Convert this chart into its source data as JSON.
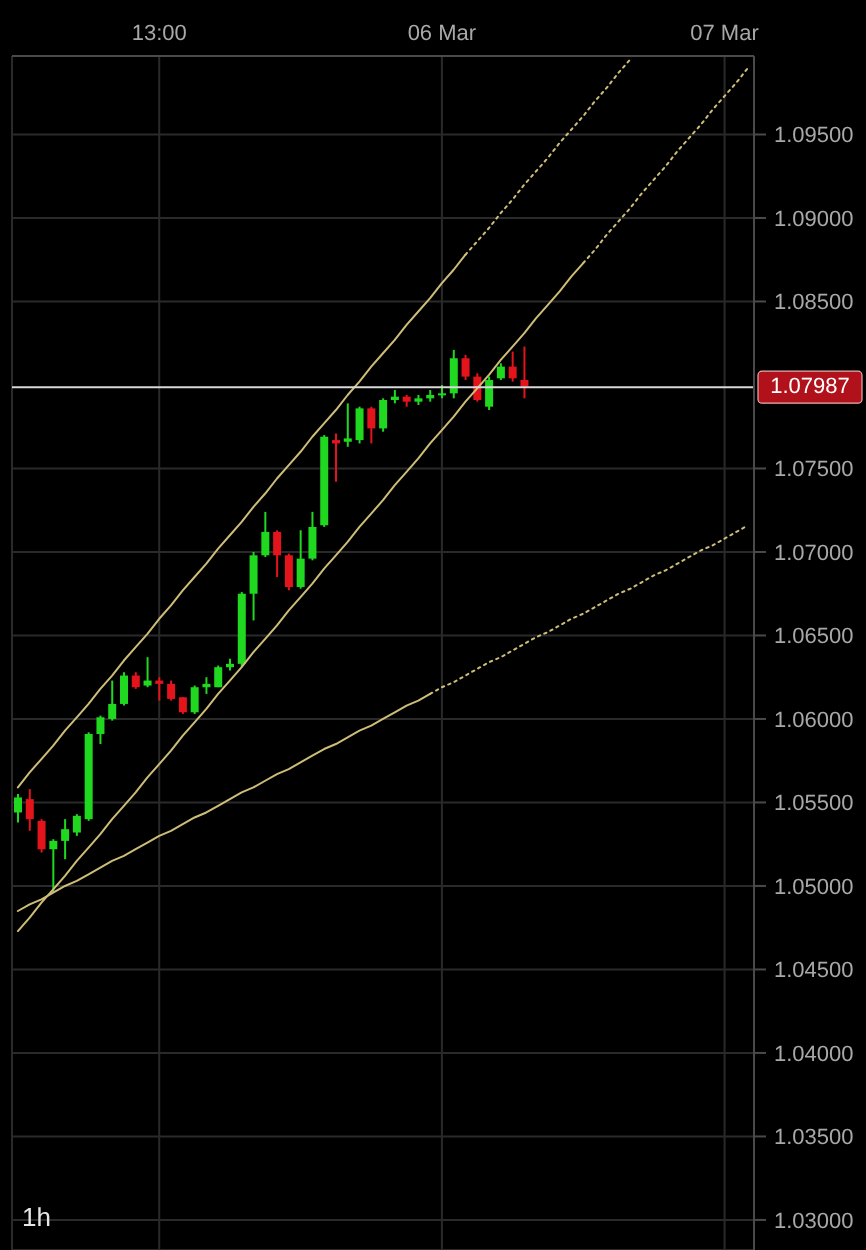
{
  "chart_data": {
    "type": "candlestick",
    "categories": [
      null,
      null,
      null,
      null,
      null,
      null,
      null,
      null,
      null,
      null,
      null,
      null,
      "13:00",
      null,
      null,
      null,
      null,
      null,
      null,
      null,
      null,
      null,
      null,
      null,
      null,
      null,
      null,
      null,
      null,
      null,
      null,
      null,
      null,
      null,
      null,
      null,
      "06 Mar",
      null,
      null,
      null,
      null,
      null,
      null,
      null,
      null,
      null,
      null,
      null,
      null,
      null,
      null,
      null,
      null,
      null,
      null,
      null,
      null,
      null,
      null,
      null,
      "07 Mar",
      null,
      null
    ],
    "ohlc": [
      [
        1.0544,
        1.0555,
        1.0538,
        1.0553
      ],
      [
        1.0552,
        1.0558,
        1.0533,
        1.054
      ],
      [
        1.0539,
        1.054,
        1.052,
        1.0522
      ],
      [
        1.0522,
        1.0528,
        1.0496,
        1.0527
      ],
      [
        1.0527,
        1.054,
        1.0516,
        1.0534
      ],
      [
        1.0532,
        1.0543,
        1.053,
        1.0542
      ],
      [
        1.054,
        1.0592,
        1.0539,
        1.0591
      ],
      [
        1.0591,
        1.0602,
        1.0585,
        1.0601
      ],
      [
        1.06,
        1.0623,
        1.0599,
        1.0609
      ],
      [
        1.0609,
        1.0628,
        1.0608,
        1.0626
      ],
      [
        1.0626,
        1.0628,
        1.0618,
        1.0619
      ],
      [
        1.062,
        1.0637,
        1.0619,
        1.0623
      ],
      [
        1.0623,
        1.0625,
        1.0611,
        1.0621
      ],
      [
        1.0621,
        1.0623,
        1.0611,
        1.0612
      ],
      [
        1.0613,
        1.0613,
        1.0603,
        1.0604
      ],
      [
        1.0604,
        1.062,
        1.0603,
        1.0619
      ],
      [
        1.0619,
        1.0625,
        1.0615,
        1.0621
      ],
      [
        1.0619,
        1.0632,
        1.0619,
        1.0631
      ],
      [
        1.0631,
        1.0636,
        1.0629,
        1.0633
      ],
      [
        1.0633,
        1.0676,
        1.0631,
        1.0675
      ],
      [
        1.0675,
        1.07,
        1.0659,
        1.0698
      ],
      [
        1.0698,
        1.0724,
        1.0697,
        1.0712
      ],
      [
        1.0712,
        1.0713,
        1.0685,
        1.0698
      ],
      [
        1.0698,
        1.0699,
        1.0677,
        1.0679
      ],
      [
        1.0679,
        1.0713,
        1.0678,
        1.0696
      ],
      [
        1.0696,
        1.0724,
        1.0695,
        1.0715
      ],
      [
        1.0716,
        1.077,
        1.0715,
        1.0769
      ],
      [
        1.0767,
        1.0771,
        1.0742,
        1.0765
      ],
      [
        1.0766,
        1.0789,
        1.0763,
        1.0768
      ],
      [
        1.0767,
        1.0787,
        1.0765,
        1.0786
      ],
      [
        1.0786,
        1.0787,
        1.0765,
        1.0774
      ],
      [
        1.0774,
        1.0792,
        1.0772,
        1.0791
      ],
      [
        1.0791,
        1.0797,
        1.0789,
        1.0793
      ],
      [
        1.0793,
        1.0794,
        1.0787,
        1.079
      ],
      [
        1.079,
        1.0794,
        1.0788,
        1.0792
      ],
      [
        1.0792,
        1.0797,
        1.079,
        1.0794
      ],
      [
        1.0794,
        1.08,
        1.0792,
        1.0795
      ],
      [
        1.0795,
        1.0821,
        1.0792,
        1.0816
      ],
      [
        1.0816,
        1.0818,
        1.0803,
        1.0805
      ],
      [
        1.0805,
        1.0807,
        1.079,
        1.0791
      ],
      [
        1.0787,
        1.0805,
        1.0785,
        1.0803
      ],
      [
        1.0804,
        1.0813,
        1.0803,
        1.0811
      ],
      [
        1.0811,
        1.082,
        1.0802,
        1.0804
      ],
      [
        1.0803,
        1.0823,
        1.0792,
        1.0799
      ],
      null,
      null,
      null,
      null,
      null,
      null,
      null,
      null,
      null,
      null,
      null,
      null,
      null,
      null,
      null,
      null,
      null,
      null,
      null
    ],
    "colors": [
      "#1fd81f",
      "#e3141b",
      "#e3141b",
      "#1fd81f",
      "#1fd81f",
      "#1fd81f",
      "#1fd81f",
      "#1fd81f",
      "#1fd81f",
      "#1fd81f",
      "#e3141b",
      "#1fd81f",
      "#e3141b",
      "#e3141b",
      "#e3141b",
      "#1fd81f",
      "#1fd81f",
      "#1fd81f",
      "#1fd81f",
      "#1fd81f",
      "#1fd81f",
      "#1fd81f",
      "#e3141b",
      "#e3141b",
      "#1fd81f",
      "#1fd81f",
      "#1fd81f",
      "#e3141b",
      "#1fd81f",
      "#1fd81f",
      "#e3141b",
      "#1fd81f",
      "#1fd81f",
      "#e3141b",
      "#1fd81f",
      "#1fd81f",
      "#1fd81f",
      "#1fd81f",
      "#e3141b",
      "#e3141b",
      "#1fd81f",
      "#1fd81f",
      "#e3141b",
      "#e3141b",
      null,
      null,
      null,
      null,
      null,
      null,
      null,
      null,
      null,
      null,
      null,
      null,
      null,
      null,
      null,
      null,
      null,
      null,
      null
    ],
    "series": [
      {
        "type": "line",
        "color": "#cdbd78",
        "line_style": "solid",
        "values": [
          1.0559,
          1.0568,
          1.0576,
          1.0584,
          1.0593,
          1.0601,
          1.0609,
          1.0618,
          1.0626,
          1.0635,
          1.0643,
          1.0651,
          1.066,
          1.0668,
          1.0677,
          1.0685,
          1.0693,
          1.0702,
          1.071,
          1.0718,
          1.0727,
          1.0735,
          1.0744,
          1.0752,
          1.076,
          1.0769,
          1.0777,
          1.0785,
          1.0794,
          1.0802,
          1.0811,
          1.0819,
          1.0827,
          1.0836,
          1.0844,
          1.0852,
          1.0861,
          1.0869,
          1.0878,
          null,
          null,
          null,
          null,
          null,
          null,
          null,
          null,
          null,
          null,
          null,
          null,
          null,
          null,
          null,
          null,
          null,
          null,
          null,
          null,
          null,
          null,
          null,
          null
        ]
      },
      {
        "type": "line",
        "color": "#cdbd78",
        "line_style": "dotted",
        "values": [
          null,
          null,
          null,
          null,
          null,
          null,
          null,
          null,
          null,
          null,
          null,
          null,
          null,
          null,
          null,
          null,
          null,
          null,
          null,
          null,
          null,
          null,
          null,
          null,
          null,
          null,
          null,
          null,
          null,
          null,
          null,
          null,
          null,
          null,
          null,
          null,
          null,
          null,
          1.0878,
          1.0886,
          1.0894,
          1.0903,
          1.0911,
          1.092,
          1.0928,
          1.0936,
          1.0945,
          1.0953,
          1.0961,
          1.097,
          1.0978,
          1.0987,
          1.0995,
          null,
          null,
          null,
          null,
          null,
          null,
          null,
          null,
          null,
          null
        ]
      },
      {
        "type": "line",
        "color": "#cdbd78",
        "line_style": "solid",
        "values": [
          1.0473,
          1.0481,
          1.049,
          1.0498,
          1.0506,
          1.0515,
          1.0523,
          1.0531,
          1.054,
          1.0548,
          1.0556,
          1.0565,
          1.0573,
          1.0581,
          1.059,
          1.0598,
          1.0606,
          1.0615,
          1.0623,
          1.0631,
          1.064,
          1.0648,
          1.0656,
          1.0665,
          1.0673,
          1.0681,
          1.069,
          1.0698,
          1.0706,
          1.0715,
          1.0723,
          1.0731,
          1.074,
          1.0748,
          1.0756,
          1.0765,
          1.0773,
          1.0781,
          1.079,
          1.0798,
          1.0806,
          1.0815,
          1.0823,
          1.0831,
          1.084,
          1.0848,
          1.0856,
          1.0865,
          1.0873,
          null,
          null,
          null,
          null,
          null,
          null,
          null,
          null,
          null,
          null,
          null,
          null,
          null,
          null
        ]
      },
      {
        "type": "line",
        "color": "#cdbd78",
        "line_style": "dotted",
        "values": [
          null,
          null,
          null,
          null,
          null,
          null,
          null,
          null,
          null,
          null,
          null,
          null,
          null,
          null,
          null,
          null,
          null,
          null,
          null,
          null,
          null,
          null,
          null,
          null,
          null,
          null,
          null,
          null,
          null,
          null,
          null,
          null,
          null,
          null,
          null,
          null,
          null,
          null,
          null,
          null,
          null,
          null,
          null,
          null,
          null,
          null,
          null,
          null,
          1.0873,
          1.0881,
          1.089,
          1.0898,
          1.0906,
          1.0915,
          1.0923,
          1.0931,
          1.094,
          1.0948,
          1.0956,
          1.0965,
          1.0973,
          1.0981,
          1.099
        ]
      },
      {
        "type": "line",
        "color": "#cdbd78",
        "line_style": "solid",
        "values": [
          1.0485,
          1.0489,
          1.0492,
          1.0496,
          1.05,
          1.0503,
          1.0507,
          1.0511,
          1.0515,
          1.0518,
          1.0522,
          1.0526,
          1.053,
          1.0533,
          1.0537,
          1.0541,
          1.0544,
          1.0548,
          1.0552,
          1.0556,
          1.0559,
          1.0563,
          1.0567,
          1.057,
          1.0574,
          1.0578,
          1.0582,
          1.0585,
          1.0589,
          1.0593,
          1.0596,
          1.06,
          1.0604,
          1.0608,
          1.0611,
          1.0615,
          null,
          null,
          null,
          null,
          null,
          null,
          null,
          null,
          null,
          null,
          null,
          null,
          null,
          null,
          null,
          null,
          null,
          null,
          null,
          null,
          null,
          null,
          null,
          null,
          null,
          null,
          null
        ]
      },
      {
        "type": "line",
        "color": "#cdbd78",
        "line_style": "dotted",
        "values": [
          null,
          null,
          null,
          null,
          null,
          null,
          null,
          null,
          null,
          null,
          null,
          null,
          null,
          null,
          null,
          null,
          null,
          null,
          null,
          null,
          null,
          null,
          null,
          null,
          null,
          null,
          null,
          null,
          null,
          null,
          null,
          null,
          null,
          null,
          null,
          1.0615,
          1.0619,
          1.0622,
          1.0626,
          1.063,
          1.0634,
          1.0637,
          1.0641,
          1.0645,
          1.0649,
          1.0652,
          1.0656,
          1.066,
          1.0663,
          1.0667,
          1.0671,
          1.0675,
          1.0678,
          1.0682,
          1.0686,
          1.0689,
          1.0693,
          1.0697,
          1.0701,
          1.0704,
          1.0708,
          1.0712,
          1.0716
        ]
      }
    ],
    "ylim": [
      1.0282,
      1.0997
    ],
    "yticks": [
      {
        "value": 1.03,
        "label": "1.03000"
      },
      {
        "value": 1.035,
        "label": "1.03500"
      },
      {
        "value": 1.04,
        "label": "1.04000"
      },
      {
        "value": 1.045,
        "label": "1.04500"
      },
      {
        "value": 1.05,
        "label": "1.05000"
      },
      {
        "value": 1.055,
        "label": "1.05500"
      },
      {
        "value": 1.06,
        "label": "1.06000"
      },
      {
        "value": 1.065,
        "label": "1.06500"
      },
      {
        "value": 1.07,
        "label": "1.07000"
      },
      {
        "value": 1.075,
        "label": "1.07500"
      },
      {
        "value": 1.085,
        "label": "1.08500"
      },
      {
        "value": 1.09,
        "label": "1.09000"
      },
      {
        "value": 1.095,
        "label": "1.09500"
      }
    ],
    "grid": true,
    "marker": "none",
    "ref_lines": [
      {
        "axis": "y",
        "value": 1.07987,
        "label": "1.07987",
        "color": "#d8d8d8"
      }
    ],
    "annotations": [
      "1h"
    ]
  }
}
